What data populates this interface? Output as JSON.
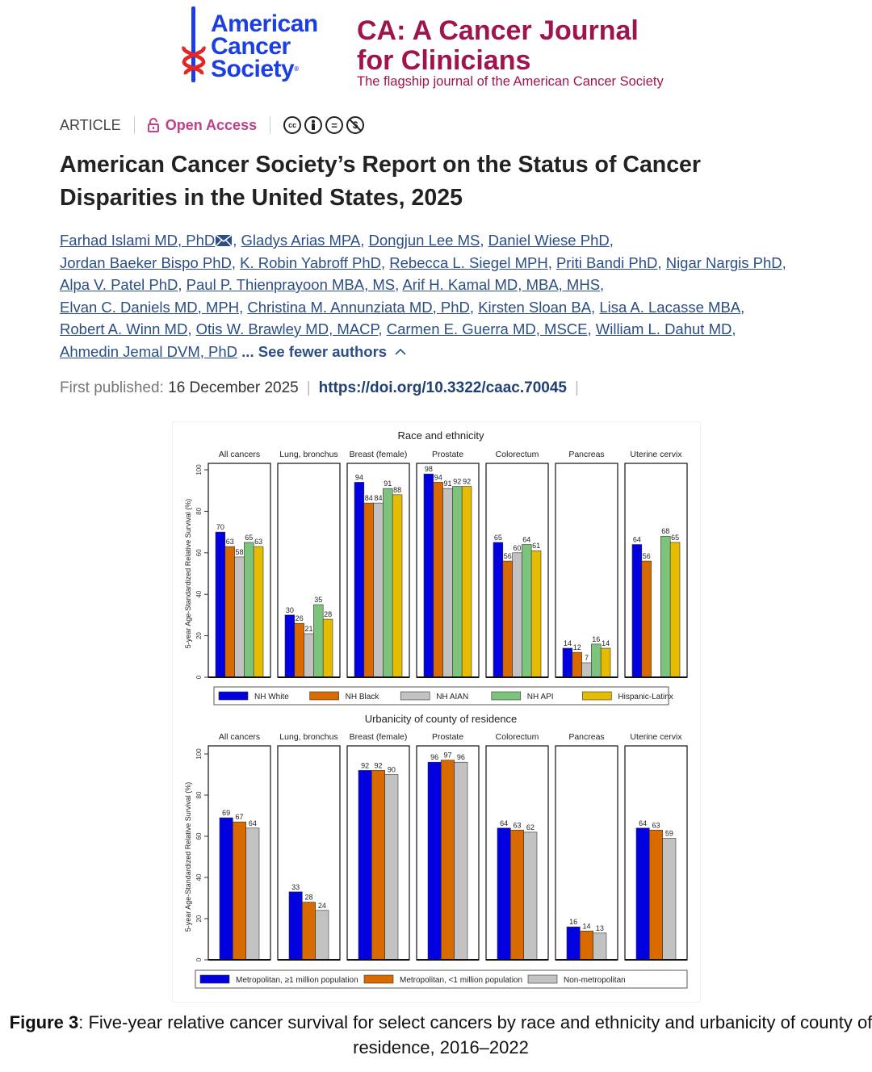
{
  "header": {
    "society_logo": {
      "line1": "American",
      "line2": "Cancer",
      "line3": "Society",
      "mark": "®"
    },
    "journal_title_line1": "CA: A Cancer Journal",
    "journal_title_line2": "for Clinicians",
    "journal_subtitle": "The flagship journal of the American Cancer Society",
    "brand_color": "#a0144e",
    "logo_color": "#1b3fe0"
  },
  "article_meta": {
    "type": "ARTICLE",
    "access": "Open Access",
    "license_icons": [
      "cc-icon",
      "by-icon",
      "nd-icon",
      "nc-icon"
    ],
    "license_text": [
      "cc",
      "",
      "=",
      "$"
    ]
  },
  "article": {
    "title": "American Cancer Society’s Report on the Status of Cancer Disparities in the United States, 2025",
    "authors": [
      "Farhad Islami MD, PhD",
      "Gladys Arias MPA",
      "Dongjun Lee MS",
      "Daniel Wiese PhD",
      "Jordan Baeker Bispo PhD",
      "K. Robin Yabroff PhD",
      "Rebecca L. Siegel MPH",
      "Priti Bandi PhD",
      "Nigar Nargis PhD",
      "Alpa V. Patel PhD",
      "Paul P. Thienprayoon MBA, MS",
      "Arif H. Kamal MD, MBA, MHS",
      "Elvan C. Daniels MD, MPH",
      "Christina M. Annunziata MD, PhD",
      "Kirsten Sloan BA",
      "Lisa A. Lacasse MBA",
      "Robert A. Winn MD",
      "Otis W. Brawley MD, MACP",
      "Carmen E. Guerra MD, MSCE",
      "William L. Dahut MD",
      "Ahmedin Jemal DVM, PhD"
    ],
    "see_fewer": "... See fewer authors",
    "first_published_label": "First published:",
    "first_published_date": "16 December 2025",
    "doi": "https://doi.org/10.3322/caac.70045"
  },
  "chart_data": [
    {
      "type": "bar",
      "title": "Race and ethnicity",
      "ylabel": "5-year Age-Standardized Relative Survival (%)",
      "ylim": [
        0,
        100
      ],
      "yticks": [
        0,
        20,
        40,
        60,
        80,
        100
      ],
      "grid": false,
      "legend_placement": "bottom",
      "categories": [
        "All cancers",
        "Lung, bronchus",
        "Breast (female)",
        "Prostate",
        "Colorectum",
        "Pancreas",
        "Uterine cervix"
      ],
      "series": [
        {
          "name": "NH White",
          "color": "#0000e0",
          "values": [
            70,
            30,
            94,
            98,
            65,
            14,
            64
          ]
        },
        {
          "name": "NH Black",
          "color": "#d96a00",
          "values": [
            63,
            26,
            84,
            94,
            56,
            12,
            56
          ]
        },
        {
          "name": "NH AIAN",
          "color": "#c2c2c2",
          "values": [
            58,
            21,
            84,
            91,
            60,
            7,
            null
          ]
        },
        {
          "name": "NH API",
          "color": "#7cc47c",
          "values": [
            65,
            35,
            91,
            92,
            64,
            16,
            68
          ]
        },
        {
          "name": "Hispanic-Latinx",
          "color": "#e6bc00",
          "values": [
            63,
            28,
            88,
            92,
            61,
            14,
            65
          ]
        }
      ]
    },
    {
      "type": "bar",
      "title": "Urbanicity of county of residence",
      "ylabel": "5-year Age-Standardized Relative Survival (%)",
      "ylim": [
        0,
        100
      ],
      "yticks": [
        0,
        20,
        40,
        60,
        80,
        100
      ],
      "grid": false,
      "legend_placement": "bottom",
      "categories": [
        "All cancers",
        "Lung, bronchus",
        "Breast (female)",
        "Prostate",
        "Colorectum",
        "Pancreas",
        "Uterine cervix"
      ],
      "series": [
        {
          "name": "Metropolitan, ≥1 million population",
          "color": "#0000e0",
          "values": [
            69,
            33,
            92,
            96,
            64,
            16,
            64
          ]
        },
        {
          "name": "Metropolitan, <1 million population",
          "color": "#d96a00",
          "values": [
            67,
            28,
            92,
            97,
            63,
            14,
            63
          ]
        },
        {
          "name": "Non-metropolitan",
          "color": "#c2c2c2",
          "values": [
            64,
            24,
            90,
            96,
            62,
            13,
            59
          ]
        }
      ]
    }
  ],
  "caption": {
    "label": "Figure 3",
    "text": ": Five-year relative cancer survival for select cancers by race and ethnicity and urbanicity of county of residence, 2016–2022"
  }
}
